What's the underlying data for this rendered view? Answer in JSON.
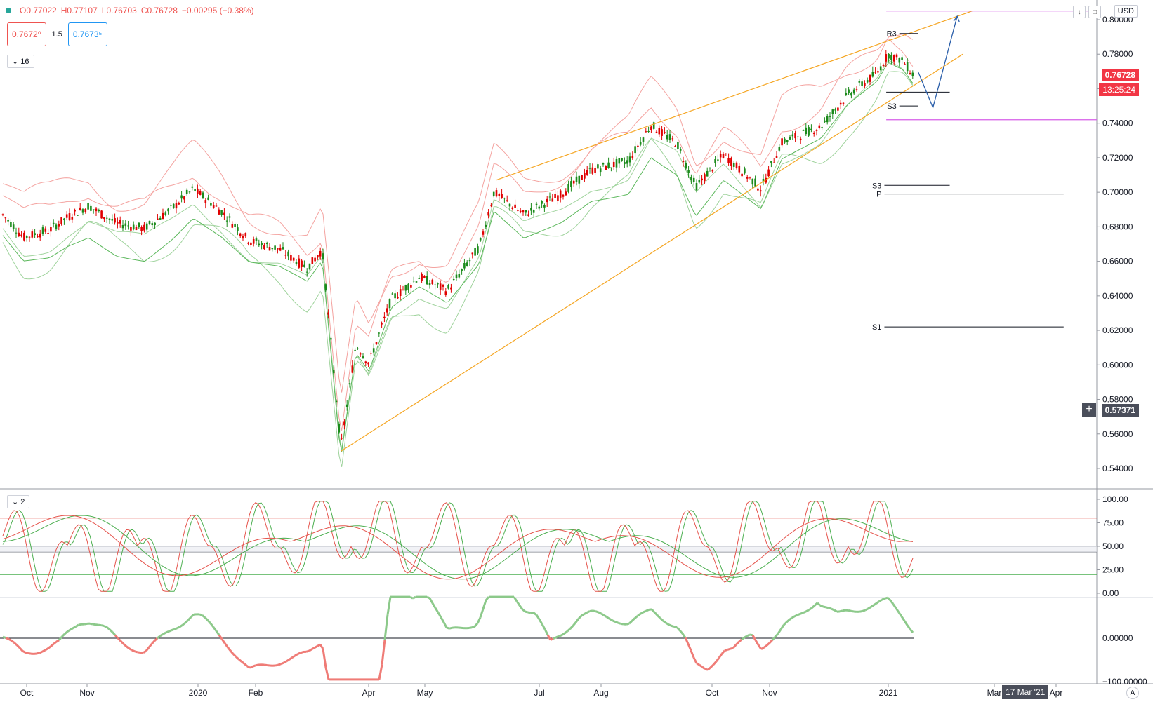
{
  "header": {
    "open": "O0.77022",
    "high": "H0.77107",
    "low": "L0.76703",
    "close": "C0.76728",
    "change": "−0.00295 (−0.38%)",
    "sell_price": "0.7672⁰",
    "spread": "1.5",
    "buy_price": "0.7673⁵",
    "currency": "USD"
  },
  "indicator_badges": {
    "main": "16",
    "stoch": "2"
  },
  "price_axis": {
    "ticks": [
      "0.80000",
      "0.78000",
      "0.76000",
      "0.74000",
      "0.72000",
      "0.70000",
      "0.68000",
      "0.66000",
      "0.64000",
      "0.62000",
      "0.60000",
      "0.58000",
      "0.56000",
      "0.54000"
    ],
    "last_price_label": "0.76728",
    "countdown_label": "13:25:24",
    "crosshair_label": "0.57371",
    "last_color": "#f23645"
  },
  "stoch_axis": {
    "ticks": [
      "100.00",
      "75.00",
      "50.00",
      "25.00",
      "0.00"
    ]
  },
  "osc_axis": {
    "ticks": [
      "0.00000",
      "−100.00000"
    ]
  },
  "time_axis": {
    "labels": [
      "Oct",
      "Nov",
      "2020",
      "Feb",
      "Apr",
      "May",
      "Jul",
      "Aug",
      "Oct",
      "Nov",
      "2021",
      "Mar",
      "Apr"
    ],
    "crosshair_date": "17 Mar '21",
    "auto_label": "A"
  },
  "pivot_labels": {
    "r3": "R3",
    "s3_upper": "S3",
    "s3_lower": "S3",
    "p": "P",
    "s1": "S1"
  },
  "chart_data": {
    "type": "candlestick",
    "symbol_quote_currency": "USD",
    "price_range": [
      0.53,
      0.805
    ],
    "last_price": 0.76728,
    "close_path": [
      {
        "t": "2019-09-20",
        "v": 0.687
      },
      {
        "t": "2019-10-01",
        "v": 0.674
      },
      {
        "t": "2019-10-15",
        "v": 0.678
      },
      {
        "t": "2019-10-25",
        "v": 0.686
      },
      {
        "t": "2019-11-05",
        "v": 0.692
      },
      {
        "t": "2019-11-20",
        "v": 0.682
      },
      {
        "t": "2019-12-05",
        "v": 0.679
      },
      {
        "t": "2019-12-20",
        "v": 0.691
      },
      {
        "t": "2019-12-31",
        "v": 0.702
      },
      {
        "t": "2020-01-15",
        "v": 0.689
      },
      {
        "t": "2020-01-30",
        "v": 0.672
      },
      {
        "t": "2020-02-15",
        "v": 0.667
      },
      {
        "t": "2020-03-01",
        "v": 0.656
      },
      {
        "t": "2020-03-09",
        "v": 0.667
      },
      {
        "t": "2020-03-19",
        "v": 0.552
      },
      {
        "t": "2020-03-27",
        "v": 0.612
      },
      {
        "t": "2020-04-03",
        "v": 0.601
      },
      {
        "t": "2020-04-15",
        "v": 0.638
      },
      {
        "t": "2020-04-30",
        "v": 0.651
      },
      {
        "t": "2020-05-15",
        "v": 0.643
      },
      {
        "t": "2020-06-01",
        "v": 0.668
      },
      {
        "t": "2020-06-09",
        "v": 0.7
      },
      {
        "t": "2020-06-25",
        "v": 0.687
      },
      {
        "t": "2020-07-15",
        "v": 0.699
      },
      {
        "t": "2020-07-31",
        "v": 0.713
      },
      {
        "t": "2020-08-20",
        "v": 0.718
      },
      {
        "t": "2020-09-01",
        "v": 0.739
      },
      {
        "t": "2020-09-15",
        "v": 0.728
      },
      {
        "t": "2020-09-25",
        "v": 0.703
      },
      {
        "t": "2020-10-10",
        "v": 0.722
      },
      {
        "t": "2020-10-30",
        "v": 0.702
      },
      {
        "t": "2020-11-10",
        "v": 0.729
      },
      {
        "t": "2020-12-01",
        "v": 0.738
      },
      {
        "t": "2020-12-15",
        "v": 0.756
      },
      {
        "t": "2020-12-31",
        "v": 0.769
      },
      {
        "t": "2021-01-06",
        "v": 0.78
      },
      {
        "t": "2021-01-14",
        "v": 0.776
      },
      {
        "t": "2021-01-20",
        "v": 0.76728
      }
    ],
    "trend_channel": {
      "upper": [
        {
          "t": "2020-06-10",
          "v": 0.707
        },
        {
          "t": "2021-02-20",
          "v": 0.805
        }
      ],
      "lower": [
        {
          "t": "2020-03-19",
          "v": 0.55
        },
        {
          "t": "2021-02-15",
          "v": 0.78
        }
      ]
    },
    "horizontal_levels": [
      {
        "name": "R3",
        "v": 0.792
      },
      {
        "name": "S3",
        "v": 0.75
      },
      {
        "name": "S3",
        "v": 0.704
      },
      {
        "name": "P",
        "v": 0.699
      },
      {
        "name": "S1",
        "v": 0.622
      }
    ],
    "projection_path": [
      {
        "t": "2021-01-22",
        "v": 0.77
      },
      {
        "t": "2021-01-30",
        "v": 0.749
      },
      {
        "t": "2021-02-12",
        "v": 0.802
      }
    ],
    "magenta_levels": [
      0.805,
      0.742
    ],
    "stochastic": {
      "range": [
        0,
        100
      ],
      "levels": [
        80,
        50,
        44,
        20
      ]
    },
    "oscillator": {
      "zero_line": 0,
      "range": [
        -100,
        100
      ]
    },
    "colors": {
      "up": "#1b8a1b",
      "down": "#e00000",
      "bands_upper": "#f4a3a0",
      "bands_lower": "#9fd39c",
      "channel": "#f5a623",
      "projection": "#2b5faa",
      "pivot": "#131722",
      "magenta": "#d65ee8"
    }
  }
}
